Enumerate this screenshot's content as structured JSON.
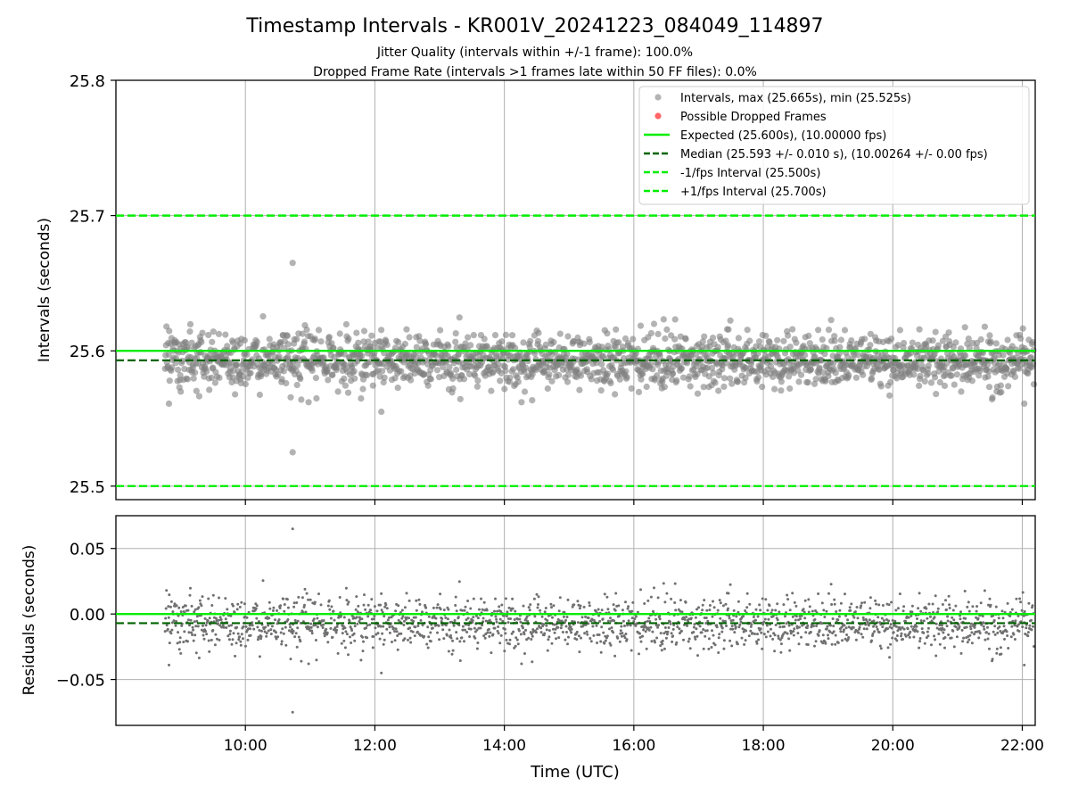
{
  "chart_data": [
    {
      "type": "scatter",
      "title": "Timestamp Intervals - KR001V_20241223_084049_114897",
      "subtitle_lines": [
        "Jitter Quality (intervals within +/-1 frame): 100.0%",
        "Dropped Frame Rate (intervals >1 frames late within 50 FF files): 0.0%"
      ],
      "xlabel": "",
      "ylabel": "Intervals (seconds)",
      "xlim": [
        8.0,
        22.2
      ],
      "ylim": [
        25.49,
        25.8
      ],
      "x_ticks": [
        10,
        12,
        14,
        16,
        18,
        20,
        22
      ],
      "x_tick_labels": [
        "10:00",
        "12:00",
        "14:00",
        "16:00",
        "18:00",
        "20:00",
        "22:00"
      ],
      "y_ticks": [
        25.5,
        25.6,
        25.7,
        25.8
      ],
      "y_tick_labels": [
        "25.5",
        "25.6",
        "25.7",
        "25.8"
      ],
      "grid": true,
      "legend_position": "top-right",
      "legend": [
        {
          "label": "Intervals, max (25.665s), min (25.525s)",
          "kind": "marker",
          "color": "#808080"
        },
        {
          "label": "Possible Dropped Frames",
          "kind": "marker",
          "color": "#ff0000"
        },
        {
          "label": "Expected (25.600s), (10.00000 fps)",
          "kind": "line",
          "color": "#00ee00",
          "dash": "solid"
        },
        {
          "label": "Median (25.593 +/- 0.010 s), (10.00264 +/- 0.00 fps)",
          "kind": "line",
          "color": "#006400",
          "dash": "dashed"
        },
        {
          "label": "-1/fps Interval (25.500s)",
          "kind": "line",
          "color": "#00ee00",
          "dash": "dashed"
        },
        {
          "label": "+1/fps Interval (25.700s)",
          "kind": "line",
          "color": "#00ee00",
          "dash": "dashed"
        }
      ],
      "reference_lines": {
        "expected": 25.6,
        "median": 25.593,
        "minus_one_frame": 25.5,
        "plus_one_frame": 25.7
      },
      "series": [
        {
          "name": "Intervals",
          "color": "#808080",
          "time_start_hours": 8.76,
          "time_end_hours": 22.18,
          "point_count": 1890,
          "median": 25.593,
          "std": 0.01,
          "max": 25.665,
          "max_time_hours": 10.73,
          "min": 25.525,
          "min_time_hours": 10.73,
          "other_outliers": [
            [
              12.1,
              25.555
            ],
            [
              8.82,
              25.561
            ],
            [
              22.03,
              25.561
            ]
          ]
        }
      ]
    },
    {
      "type": "scatter",
      "title": "",
      "xlabel": "Time (UTC)",
      "ylabel": "Residuals (seconds)",
      "xlim": [
        8.0,
        22.2
      ],
      "ylim": [
        -0.085,
        0.075
      ],
      "x_ticks": [
        10,
        12,
        14,
        16,
        18,
        20,
        22
      ],
      "x_tick_labels": [
        "10:00",
        "12:00",
        "14:00",
        "16:00",
        "18:00",
        "20:00",
        "22:00"
      ],
      "y_ticks": [
        -0.05,
        0.0,
        0.05
      ],
      "y_tick_labels": [
        "−0.05",
        "0.00",
        "0.05"
      ],
      "grid": true,
      "reference_lines": {
        "zero": 0.0,
        "median_residual": -0.007
      },
      "series": [
        {
          "name": "Residuals",
          "color": "#707070",
          "derived_from": "Intervals minus expected (25.600s)"
        }
      ]
    }
  ],
  "colors": {
    "expected_line": "#00ee00",
    "median_line": "#006400",
    "points": "#808080",
    "dropped": "#ff0000"
  }
}
